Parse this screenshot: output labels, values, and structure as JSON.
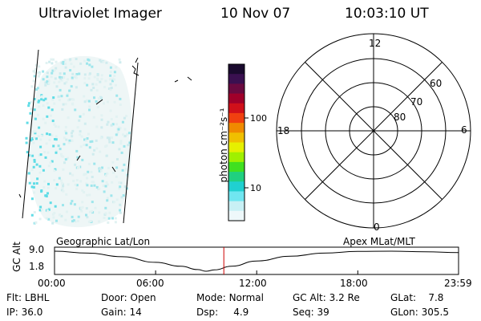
{
  "header": {
    "instrument": "Ultraviolet Imager",
    "date": "10 Nov 07",
    "time": "10:03:10 UT"
  },
  "panels": {
    "left_caption": "Geographic Lat/Lon",
    "right_caption": "Apex MLat/MLT"
  },
  "colorbar": {
    "unit_label": "photon cm⁻²s⁻¹",
    "ticks": [
      "100",
      "10"
    ],
    "colors": [
      "#1a0a2e",
      "#3a1050",
      "#6a0a40",
      "#a0002a",
      "#d0101a",
      "#f04010",
      "#f08a00",
      "#f0c000",
      "#e6f000",
      "#a0f000",
      "#40e020",
      "#20d080",
      "#20d0d0",
      "#70e6f0",
      "#c8f0f5",
      "#eef8fa"
    ]
  },
  "polar_plot": {
    "mlt_labels": [
      "12",
      "6",
      "0",
      "18"
    ],
    "mlat_labels": [
      "60",
      "70",
      "80"
    ]
  },
  "timeline": {
    "y_axis_label": "GC Alt",
    "y_ticks": [
      "9.0",
      "1.8"
    ],
    "x_ticks": [
      "00:00",
      "06:00",
      "12:00",
      "18:00",
      "23:59"
    ],
    "current_time_marker_color": "#cc0000"
  },
  "chart_data": {
    "type": "line",
    "title": "",
    "xlabel": "",
    "ylabel": "GC Alt",
    "xlim": [
      "00:00",
      "23:59"
    ],
    "ylim": [
      1.8,
      9.0
    ],
    "x": [
      "00:00",
      "02:00",
      "04:00",
      "06:00",
      "07:30",
      "08:30",
      "09:00",
      "09:30",
      "10:30",
      "12:00",
      "14:00",
      "16:00",
      "18:00",
      "20:00",
      "22:00",
      "23:59"
    ],
    "series": [
      {
        "values": [
          9.0,
          8.3,
          7.0,
          5.0,
          3.6,
          2.4,
          1.8,
          2.3,
          3.6,
          5.5,
          7.2,
          8.3,
          8.9,
          9.0,
          8.8,
          8.5
        ]
      }
    ],
    "current_time": "10:03"
  },
  "info": {
    "flt_label": "Flt:",
    "flt_value": "LBHL",
    "door_label": "Door:",
    "door_value": "Open",
    "mode_label": "Mode:",
    "mode_value": "Normal",
    "gcalt_label": "GC Alt:",
    "gcalt_value": "3.2 Re",
    "glat_label": "GLat:",
    "glat_value": "7.8",
    "ip_label": "IP:",
    "ip_value": "36.0",
    "gain_label": "Gain:",
    "gain_value": "14",
    "dsp_label": "Dsp:",
    "dsp_value": "4.9",
    "seq_label": "Seq:",
    "seq_value": "39",
    "glon_label": "GLon:",
    "glon_value": "305.5"
  }
}
